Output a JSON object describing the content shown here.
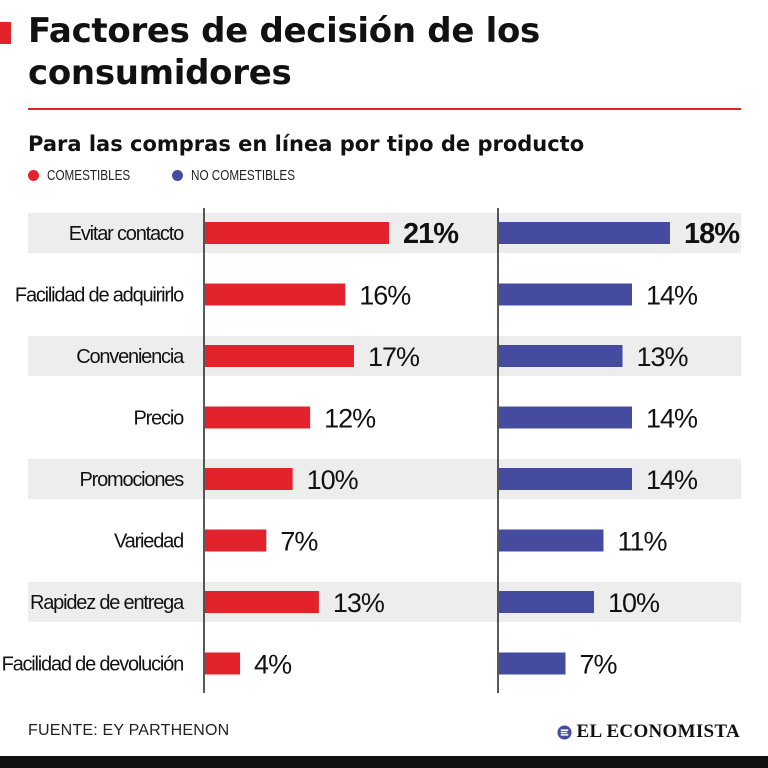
{
  "header": {
    "title": "Factores de decisión de los consumidores",
    "subtitle": "Para las compras en línea por tipo de producto"
  },
  "legend": [
    {
      "label": "COMESTIBLES",
      "color": "#e3232c"
    },
    {
      "label": "NO COMESTIBLES",
      "color": "#454ca0"
    }
  ],
  "footer": {
    "source": "FUENTE: EY PARTHENON",
    "brand": "EL ECONOMISTA"
  },
  "colors": {
    "accent": "#e3232c",
    "comestibles": "#e3232c",
    "no_comestibles": "#454ca0",
    "stripe": "#ededed"
  },
  "chart_data": {
    "type": "bar",
    "orientation": "horizontal",
    "title": "Factores de decisión de los consumidores",
    "subtitle": "Para las compras en línea por tipo de producto",
    "categories": [
      "Evitar contacto",
      "Facilidad de adquirirlo",
      "Conveniencia",
      "Precio",
      "Promociones",
      "Variedad",
      "Rapidez de entrega",
      "Facilidad de devolución"
    ],
    "series": [
      {
        "name": "COMESTIBLES",
        "color": "#e3232c",
        "values": [
          21,
          16,
          17,
          12,
          10,
          7,
          13,
          4
        ]
      },
      {
        "name": "NO COMESTIBLES",
        "color": "#454ca0",
        "values": [
          18,
          14,
          13,
          14,
          14,
          11,
          10,
          7
        ]
      }
    ],
    "value_suffix": "%",
    "xlim": [
      0,
      21
    ],
    "legend_position": "top-left"
  }
}
